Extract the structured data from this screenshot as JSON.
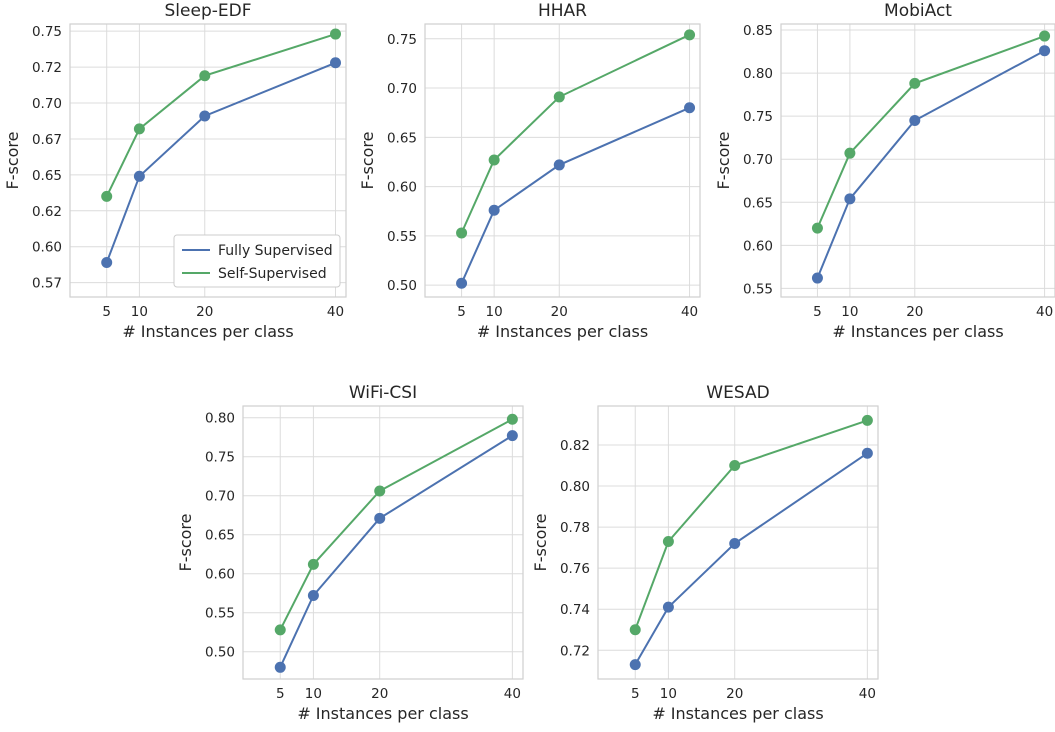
{
  "colors": {
    "fully_supervised": "#4c72b0",
    "self_supervised": "#55a868"
  },
  "chart_data": [
    {
      "type": "line",
      "title": "Sleep-EDF",
      "xlabel": "# Instances per class",
      "ylabel": "F-score",
      "x": [
        5,
        10,
        20,
        40
      ],
      "xlim": [
        0,
        40
      ],
      "ylim": [
        0.565,
        0.755
      ],
      "yticks": [
        0.575,
        0.6,
        0.625,
        0.65,
        0.675,
        0.7,
        0.725,
        0.75
      ],
      "yticklabels": [
        "0.57",
        "0.60",
        "0.62",
        "0.65",
        "0.67",
        "0.70",
        "0.72",
        "0.75"
      ],
      "grid": true,
      "legend": "lower-right",
      "series": [
        {
          "name": "Fully Supervised",
          "color": "#4c72b0",
          "values": [
            0.589,
            0.649,
            0.691,
            0.728
          ]
        },
        {
          "name": "Self-Supervised",
          "color": "#55a868",
          "values": [
            0.635,
            0.682,
            0.719,
            0.748
          ]
        }
      ]
    },
    {
      "type": "line",
      "title": "HHAR",
      "xlabel": "# Instances per class",
      "ylabel": "F-score",
      "x": [
        5,
        10,
        20,
        40
      ],
      "xlim": [
        0,
        40
      ],
      "ylim": [
        0.488,
        0.765
      ],
      "yticks": [
        0.5,
        0.55,
        0.6,
        0.65,
        0.7,
        0.75
      ],
      "yticklabels": [
        "0.50",
        "0.55",
        "0.60",
        "0.65",
        "0.70",
        "0.75"
      ],
      "grid": true,
      "series": [
        {
          "name": "Fully Supervised",
          "color": "#4c72b0",
          "values": [
            0.502,
            0.576,
            0.622,
            0.68
          ]
        },
        {
          "name": "Self-Supervised",
          "color": "#55a868",
          "values": [
            0.553,
            0.627,
            0.691,
            0.754
          ]
        }
      ]
    },
    {
      "type": "line",
      "title": "MobiAct",
      "xlabel": "# Instances per class",
      "ylabel": "F-score",
      "x": [
        5,
        10,
        20,
        40
      ],
      "xlim": [
        0,
        40
      ],
      "ylim": [
        0.54,
        0.857
      ],
      "yticks": [
        0.55,
        0.6,
        0.65,
        0.7,
        0.75,
        0.8,
        0.85
      ],
      "yticklabels": [
        "0.55",
        "0.60",
        "0.65",
        "0.70",
        "0.75",
        "0.80",
        "0.85"
      ],
      "grid": true,
      "series": [
        {
          "name": "Fully Supervised",
          "color": "#4c72b0",
          "values": [
            0.562,
            0.654,
            0.745,
            0.826
          ]
        },
        {
          "name": "Self-Supervised",
          "color": "#55a868",
          "values": [
            0.62,
            0.707,
            0.788,
            0.843
          ]
        }
      ]
    },
    {
      "type": "line",
      "title": "WiFi-CSI",
      "xlabel": "# Instances per class",
      "ylabel": "F-score",
      "x": [
        5,
        10,
        20,
        40
      ],
      "xlim": [
        0,
        40
      ],
      "ylim": [
        0.465,
        0.815
      ],
      "yticks": [
        0.5,
        0.55,
        0.6,
        0.65,
        0.7,
        0.75,
        0.8
      ],
      "yticklabels": [
        "0.50",
        "0.55",
        "0.60",
        "0.65",
        "0.70",
        "0.75",
        "0.80"
      ],
      "grid": true,
      "series": [
        {
          "name": "Fully Supervised",
          "color": "#4c72b0",
          "values": [
            0.48,
            0.572,
            0.671,
            0.777
          ]
        },
        {
          "name": "Self-Supervised",
          "color": "#55a868",
          "values": [
            0.528,
            0.612,
            0.706,
            0.798
          ]
        }
      ]
    },
    {
      "type": "line",
      "title": "WESAD",
      "xlabel": "# Instances per class",
      "ylabel": "F-score",
      "x": [
        5,
        10,
        20,
        40
      ],
      "xlim": [
        0,
        40
      ],
      "ylim": [
        0.706,
        0.839
      ],
      "yticks": [
        0.72,
        0.74,
        0.76,
        0.78,
        0.8,
        0.82
      ],
      "yticklabels": [
        "0.72",
        "0.74",
        "0.76",
        "0.78",
        "0.80",
        "0.82"
      ],
      "grid": true,
      "series": [
        {
          "name": "Fully Supervised",
          "color": "#4c72b0",
          "values": [
            0.713,
            0.741,
            0.772,
            0.816
          ]
        },
        {
          "name": "Self-Supervised",
          "color": "#55a868",
          "values": [
            0.73,
            0.773,
            0.81,
            0.832
          ]
        }
      ]
    }
  ]
}
